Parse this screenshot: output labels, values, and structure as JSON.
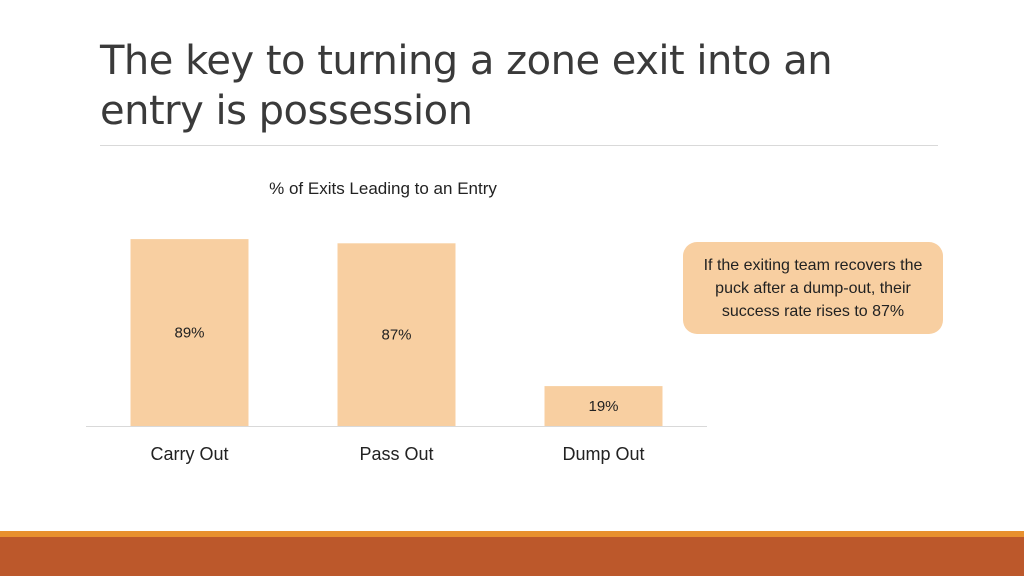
{
  "slide": {
    "title": "The key to turning a zone exit into an entry is possession",
    "callout": "If the exiting team recovers the puck after a dump-out, their success rate rises to 87%"
  },
  "colors": {
    "bar": "#f8cfa1",
    "callout_bg": "#f8cfa1",
    "footer_top": "#e8902e",
    "footer": "#bc582b",
    "axis": "#d9d9d9"
  },
  "chart_data": {
    "type": "bar",
    "title": "% of Exits Leading to an Entry",
    "categories": [
      "Carry Out",
      "Pass Out",
      "Dump Out"
    ],
    "values": [
      89,
      87,
      19
    ],
    "data_labels": [
      "89%",
      "87%",
      "19%"
    ],
    "ylim": [
      0,
      100
    ],
    "xlabel": "",
    "ylabel": "",
    "grid": false,
    "legend": "none"
  }
}
